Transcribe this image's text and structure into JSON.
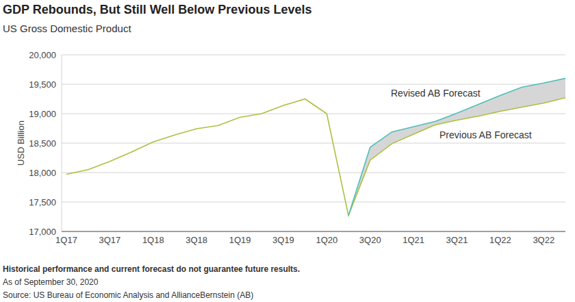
{
  "chart_data": {
    "type": "line",
    "title": "GDP Rebounds, But Still Well Below Previous Levels",
    "subtitle": "US Gross Domestic Product",
    "y_label": "USD Billion",
    "categories": [
      "1Q17",
      null,
      "3Q17",
      null,
      "1Q18",
      null,
      "3Q18",
      null,
      "1Q19",
      null,
      "3Q19",
      null,
      "1Q20",
      null,
      "3Q20",
      null,
      "1Q21",
      null,
      "3Q21",
      null,
      "1Q22",
      null,
      "3Q22",
      null
    ],
    "series": [
      {
        "name": "Previous AB Forecast",
        "color": "#a9c23f",
        "values": [
          17970,
          18050,
          18190,
          18350,
          18520,
          18640,
          18745,
          18800,
          18940,
          19000,
          19140,
          19250,
          19000,
          17270,
          18210,
          18490,
          18650,
          18810,
          18890,
          18960,
          19040,
          19110,
          19180,
          19270
        ]
      },
      {
        "name": "Revised AB Forecast",
        "color": "#4dbfb9",
        "values": [
          null,
          null,
          null,
          null,
          null,
          null,
          null,
          null,
          null,
          null,
          null,
          null,
          null,
          17270,
          18430,
          18690,
          18780,
          18870,
          19010,
          19160,
          19310,
          19450,
          19520,
          19600
        ]
      }
    ],
    "ylim": [
      17000,
      20000
    ],
    "yticks": [
      {
        "value": 17000,
        "label": "17,000"
      },
      {
        "value": 17500,
        "label": "17,500"
      },
      {
        "value": 18000,
        "label": "18,000"
      },
      {
        "value": 18500,
        "label": "18,500"
      },
      {
        "value": 19000,
        "label": "19,000"
      },
      {
        "value": 19500,
        "label": "19,500"
      },
      {
        "value": 20000,
        "label": "20,000"
      }
    ],
    "grid": true,
    "notes": [
      "Historical performance and current forecast do not guarantee future results.",
      "As of September 30, 2020",
      "Source: US Bureau of Economic Analysis and AllianceBernstein (AB)"
    ]
  }
}
